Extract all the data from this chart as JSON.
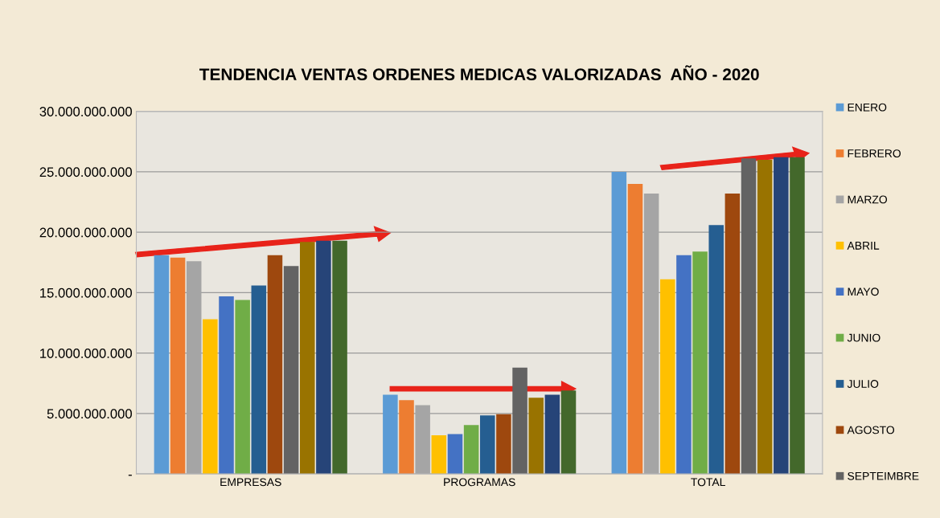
{
  "chart_data": {
    "type": "bar",
    "title": "TENDENCIA VENTAS ORDENES MEDICAS VALORIZADAS  AÑO - 2020",
    "categories": [
      "EMPRESAS",
      "PROGRAMAS",
      "TOTAL"
    ],
    "series": [
      {
        "name": "ENERO",
        "color": "#5b9bd5",
        "values": [
          18100000000,
          6550000000,
          25000000000
        ]
      },
      {
        "name": "FEBRERO",
        "color": "#ed7d31",
        "values": [
          17900000000,
          6100000000,
          24000000000
        ]
      },
      {
        "name": "MARZO",
        "color": "#a5a5a5",
        "values": [
          17600000000,
          5700000000,
          23200000000
        ]
      },
      {
        "name": "ABRIL",
        "color": "#ffc000",
        "values": [
          12800000000,
          3200000000,
          16100000000
        ]
      },
      {
        "name": "MAYO",
        "color": "#4472c4",
        "values": [
          14700000000,
          3300000000,
          18100000000
        ]
      },
      {
        "name": "JUNIO",
        "color": "#70ad47",
        "values": [
          14400000000,
          4050000000,
          18400000000
        ]
      },
      {
        "name": "JULIO",
        "color": "#255e91",
        "values": [
          15600000000,
          4850000000,
          20600000000
        ]
      },
      {
        "name": "AGOSTO",
        "color": "#9e480e",
        "values": [
          18100000000,
          4950000000,
          23200000000
        ]
      },
      {
        "name": "SEPTEIMBRE",
        "color": "#636363",
        "values": [
          17200000000,
          8800000000,
          26100000000
        ]
      },
      {
        "color": "#997300",
        "values": [
          19200000000,
          6300000000,
          26000000000
        ]
      },
      {
        "color": "#264478",
        "values": [
          19300000000,
          6550000000,
          26200000000
        ]
      },
      {
        "color": "#43682b",
        "values": [
          19300000000,
          6900000000,
          26200000000
        ]
      }
    ],
    "ylim": [
      0,
      30000000000
    ],
    "yticks": [
      {
        "value": 0,
        "label": "-"
      },
      {
        "value": 5000000000,
        "label": "5.000.000.000"
      },
      {
        "value": 10000000000,
        "label": "10.000.000.000"
      },
      {
        "value": 15000000000,
        "label": "15.000.000.000"
      },
      {
        "value": 20000000000,
        "label": "20.000.000.000"
      },
      {
        "value": 25000000000,
        "label": "25.000.000.000"
      },
      {
        "value": 30000000000,
        "label": "30.000.000.000"
      }
    ],
    "grid": "y",
    "legend": "right"
  }
}
